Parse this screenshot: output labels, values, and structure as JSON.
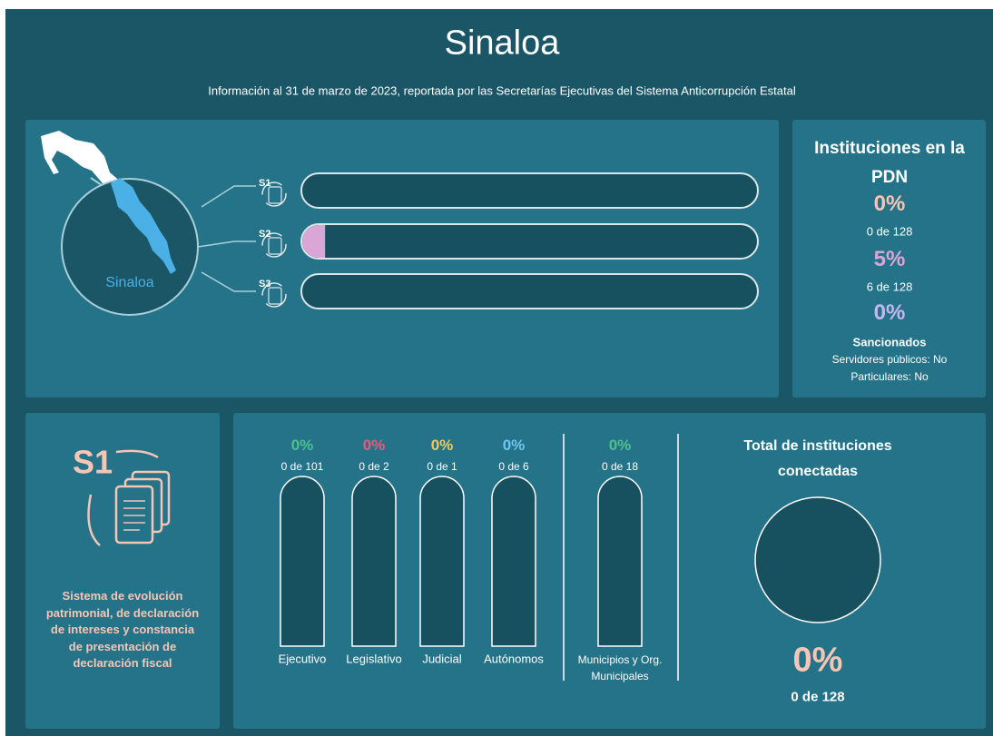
{
  "header": {
    "title": "Sinaloa",
    "subtitle": "Información al 31 de marzo de 2023, reportada por las Secretarías Ejecutivas del Sistema Anticorrupción Estatal"
  },
  "map": {
    "label": "Sinaloa"
  },
  "pdn_heading": "Instituciones en la PDN",
  "systems": [
    {
      "label": "S1",
      "percent": {
        "value": 0,
        "label": "0%"
      },
      "count": "0 de 128"
    },
    {
      "label": "S2",
      "percent": {
        "value": 5,
        "label": "5%"
      },
      "count": "6 de 128"
    },
    {
      "label": "S3",
      "percent": {
        "value": 0,
        "label": "0%"
      },
      "heading": "Sancionados",
      "lines": [
        "Servidores públicos: No",
        "Particulares: No"
      ]
    }
  ],
  "detail": {
    "badge": "S1",
    "description": "Sistema de evolución patrimonial, de declaración de intereses y constancia de presentación de declaración fiscal"
  },
  "branches": [
    {
      "name": "Ejecutivo",
      "percent": {
        "value": 0,
        "label": "0%"
      },
      "count": "0 de 101",
      "color": "#4fc08d"
    },
    {
      "name": "Legislativo",
      "percent": {
        "value": 0,
        "label": "0%"
      },
      "count": "0 de 2",
      "color": "#e0607a"
    },
    {
      "name": "Judicial",
      "percent": {
        "value": 0,
        "label": "0%"
      },
      "count": "0 de 1",
      "color": "#f0c95a"
    },
    {
      "name": "Autónomos",
      "percent": {
        "value": 0,
        "label": "0%"
      },
      "count": "0 de 6",
      "color": "#6ec6f0"
    },
    {
      "name": "Municipios y Org. Municipales",
      "percent": {
        "value": 0,
        "label": "0%"
      },
      "count": "0 de 18",
      "color": "#4fc08d"
    }
  ],
  "total": {
    "heading": "Total de instituciones conectadas",
    "percent": {
      "value": 0,
      "label": "0%"
    },
    "count": "0 de 128"
  }
}
